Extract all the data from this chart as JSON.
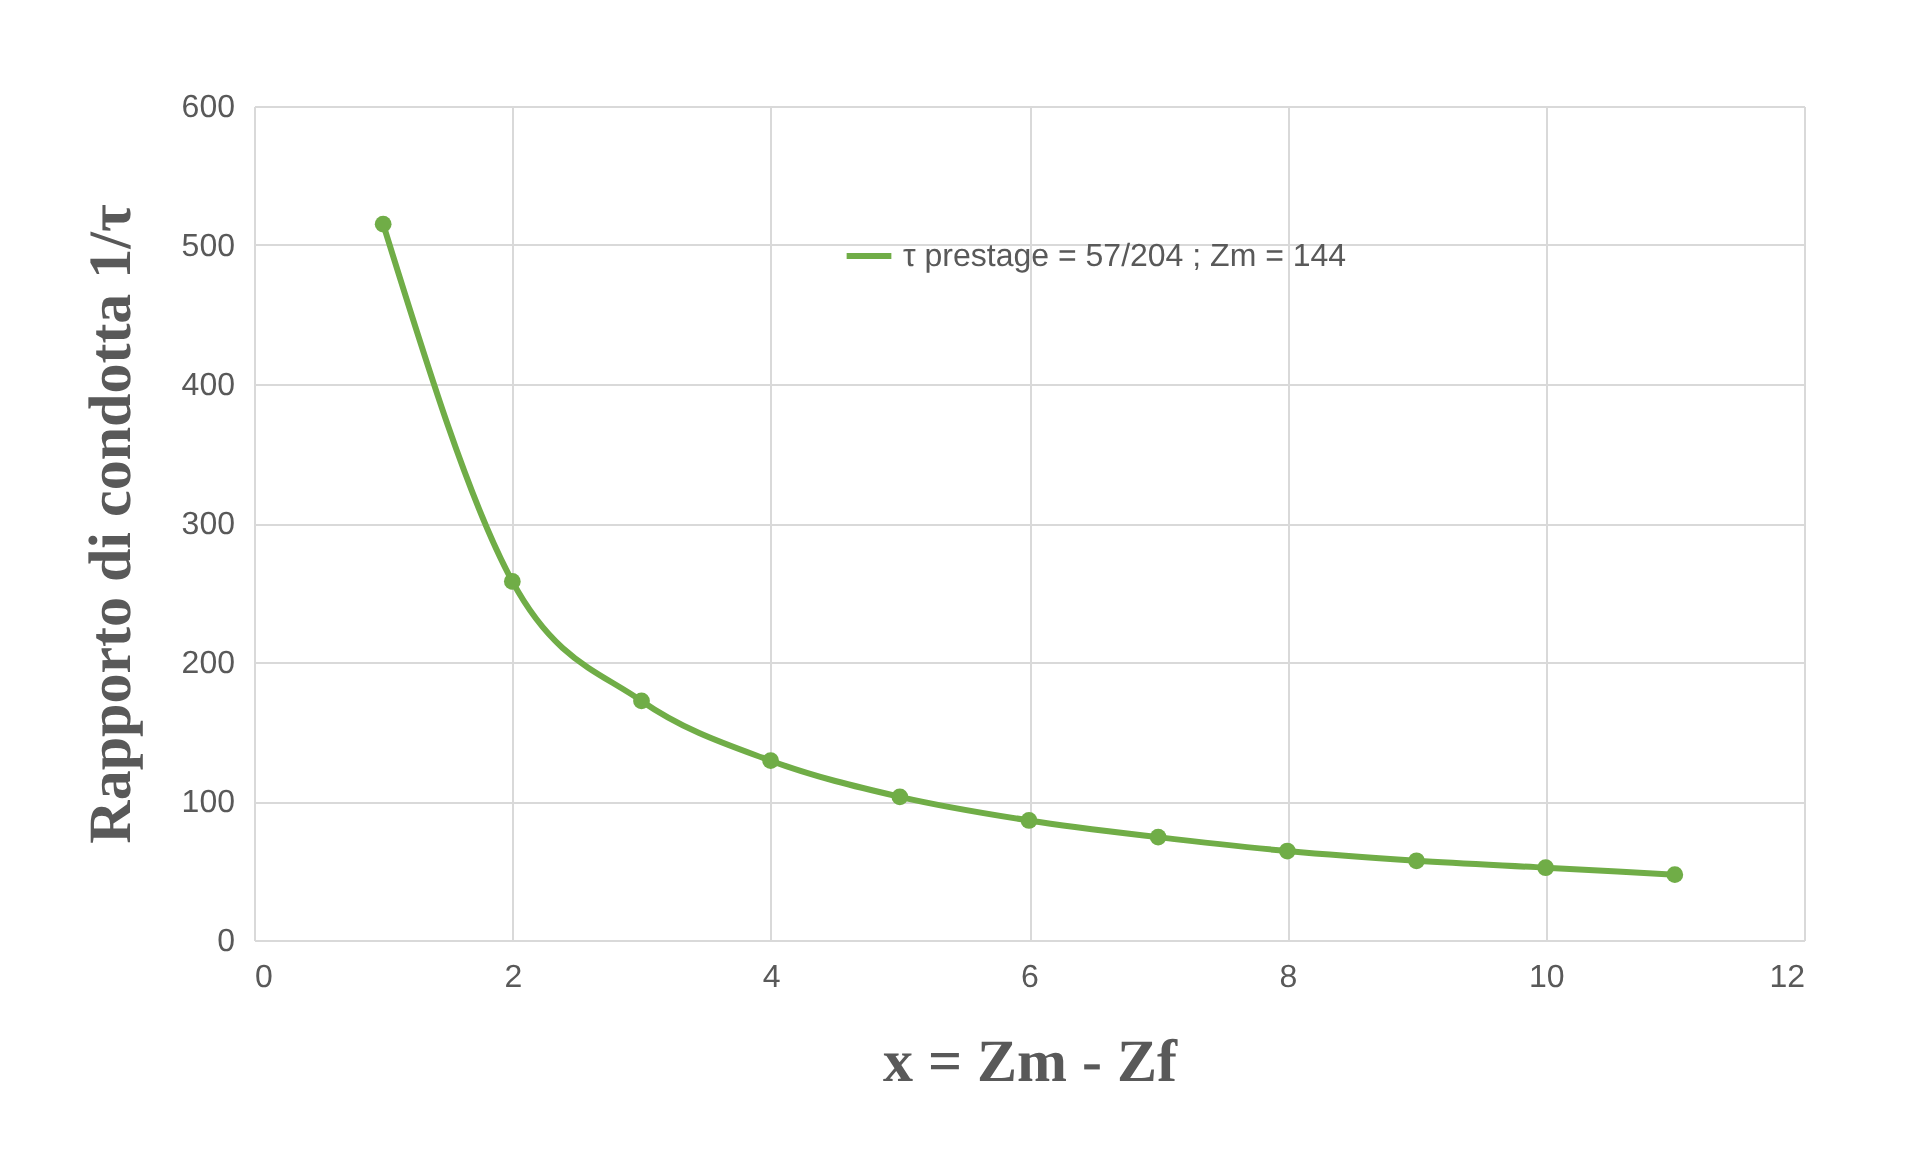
{
  "chart_data": {
    "type": "line",
    "xlabel": "x = Zm - Zf",
    "ylabel": "Rapporto di condotta 1/τ",
    "x": [
      1,
      2,
      3,
      4,
      5,
      6,
      7,
      8,
      9,
      10,
      11
    ],
    "series": [
      {
        "name": "τ prestage = 57/204 ; Zm = 144",
        "color": "#70ad47",
        "values": [
          515,
          258,
          172,
          129,
          103,
          86,
          74,
          64,
          57,
          52,
          47
        ]
      }
    ],
    "xlim": [
      0,
      12
    ],
    "xticks": [
      0,
      2,
      4,
      6,
      8,
      10,
      12
    ],
    "ylim": [
      0,
      600
    ],
    "yticks": [
      0,
      100,
      200,
      300,
      400,
      500,
      600
    ],
    "grid": true,
    "legend": "top",
    "marker": "circle",
    "line_style": "solid"
  }
}
